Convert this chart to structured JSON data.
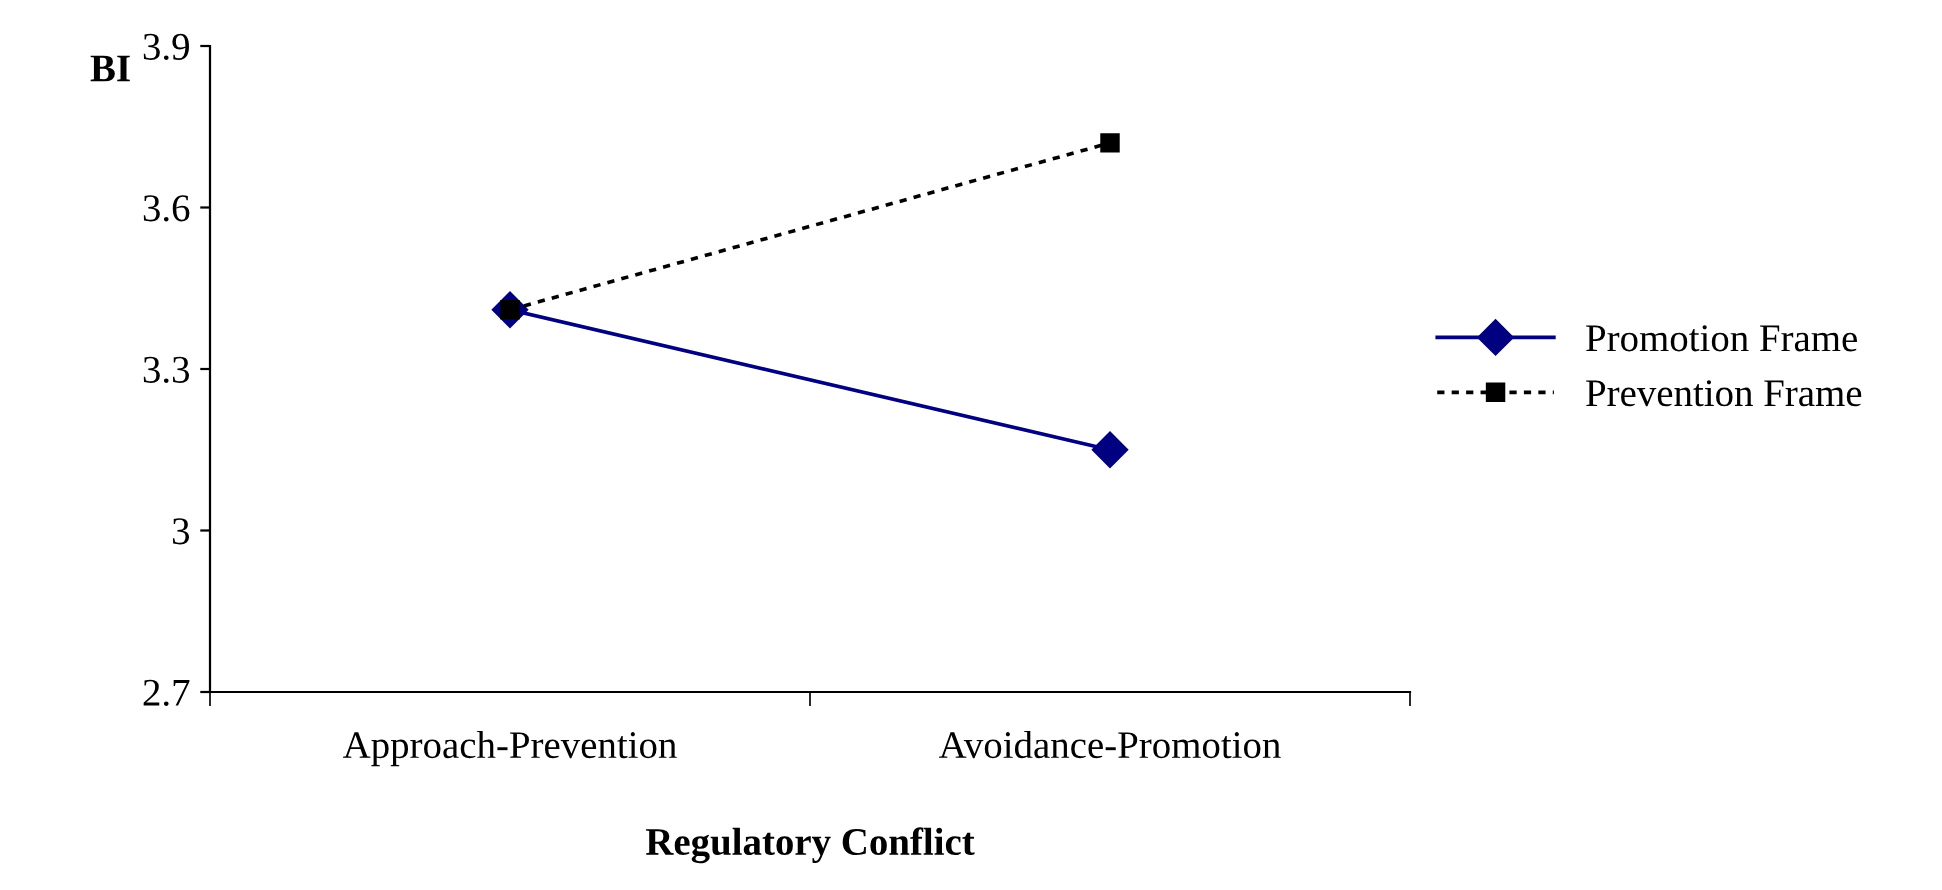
{
  "chart_data": {
    "type": "line",
    "xlabel": "Regulatory Conflict",
    "ylabel": "BI",
    "categories": [
      "Approach-Prevention",
      "Avoidance-Promotion"
    ],
    "series": [
      {
        "name": "Promotion Frame",
        "color": "#000080",
        "values": [
          3.41,
          3.15
        ],
        "marker": "diamond",
        "line_style": "solid"
      },
      {
        "name": "Prevention Frame",
        "color": "#000000",
        "values": [
          3.41,
          3.72
        ],
        "marker": "square",
        "line_style": "dotted"
      }
    ],
    "ylim": [
      2.7,
      3.9
    ],
    "yticks": [
      2.7,
      3,
      3.3,
      3.6,
      3.9
    ],
    "grid": false,
    "legend": "right"
  }
}
